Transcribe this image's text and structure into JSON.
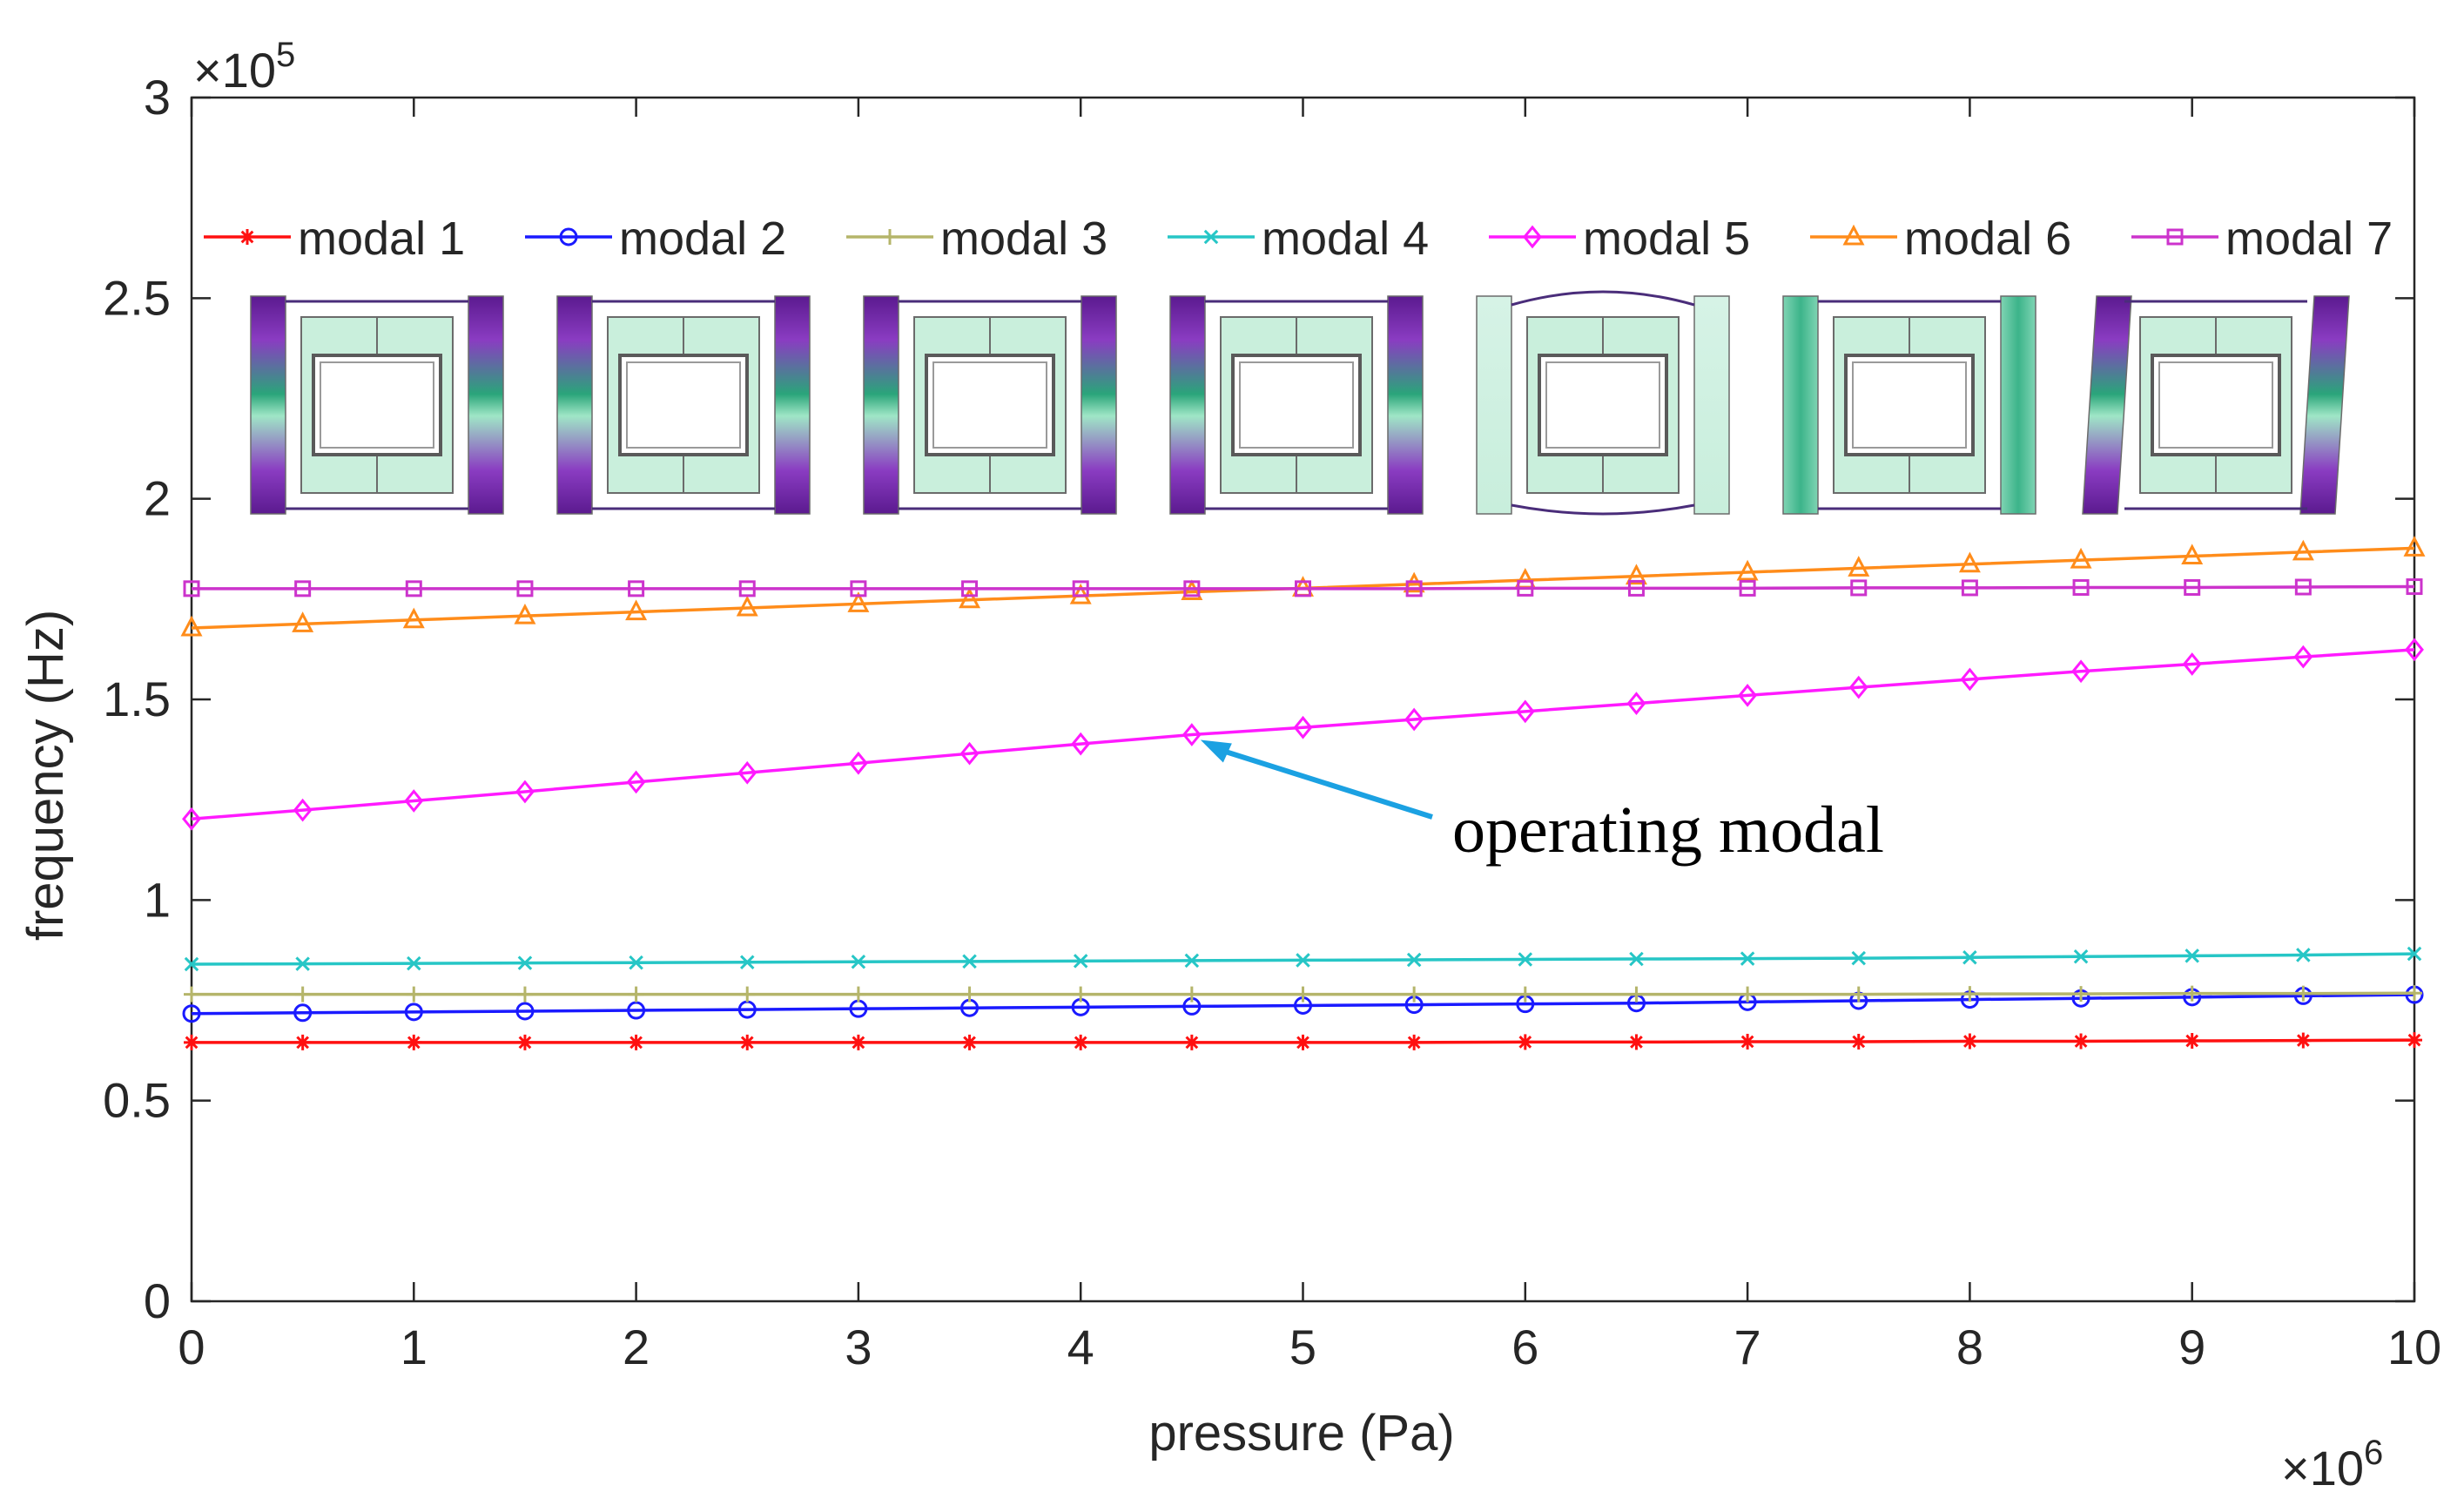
{
  "chart_data": {
    "type": "line",
    "xlabel": "pressure (Pa)",
    "ylabel": "frequency (Hz)",
    "x_exponent_label": "×10",
    "x_exponent_power": "6",
    "y_exponent_label": "×10",
    "y_exponent_power": "5",
    "xlim": [
      0,
      10
    ],
    "ylim": [
      0,
      3
    ],
    "x_scale": 1000000,
    "y_scale": 100000,
    "xticks": [
      "0",
      "1",
      "2",
      "3",
      "4",
      "5",
      "6",
      "7",
      "8",
      "9",
      "10"
    ],
    "yticks": [
      "0",
      "0.5",
      "1",
      "1.5",
      "2",
      "2.5",
      "3"
    ],
    "grid": false,
    "legend_position": "top, single row",
    "x": [
      0,
      0.5,
      1,
      1.5,
      2,
      2.5,
      3,
      3.5,
      4,
      4.5,
      5,
      5.5,
      6,
      6.5,
      7,
      7.5,
      8,
      8.5,
      9,
      9.5,
      10
    ],
    "series": [
      {
        "name": "modal 1",
        "color": "#ff1010",
        "marker": "asterisk",
        "values": [
          0.645,
          0.645,
          0.645,
          0.645,
          0.645,
          0.645,
          0.645,
          0.645,
          0.645,
          0.645,
          0.645,
          0.645,
          0.646,
          0.646,
          0.647,
          0.647,
          0.648,
          0.648,
          0.649,
          0.65,
          0.651
        ]
      },
      {
        "name": "modal 2",
        "color": "#1a1aff",
        "marker": "circle",
        "values": [
          0.717,
          0.719,
          0.721,
          0.723,
          0.725,
          0.727,
          0.729,
          0.731,
          0.733,
          0.735,
          0.737,
          0.739,
          0.741,
          0.743,
          0.746,
          0.749,
          0.752,
          0.755,
          0.758,
          0.761,
          0.764
        ]
      },
      {
        "name": "modal 3",
        "color": "#b5b56a",
        "marker": "plus",
        "values": [
          0.765,
          0.765,
          0.765,
          0.765,
          0.765,
          0.765,
          0.765,
          0.765,
          0.765,
          0.765,
          0.765,
          0.765,
          0.765,
          0.765,
          0.765,
          0.765,
          0.766,
          0.766,
          0.767,
          0.767,
          0.768
        ]
      },
      {
        "name": "modal 4",
        "color": "#26c6c6",
        "marker": "x",
        "values": [
          0.84,
          0.841,
          0.842,
          0.843,
          0.844,
          0.845,
          0.846,
          0.847,
          0.848,
          0.849,
          0.85,
          0.851,
          0.852,
          0.853,
          0.854,
          0.855,
          0.857,
          0.859,
          0.861,
          0.863,
          0.866
        ]
      },
      {
        "name": "modal 5",
        "color": "#ff1aff",
        "marker": "diamond",
        "values": [
          1.202,
          1.224,
          1.247,
          1.27,
          1.294,
          1.317,
          1.341,
          1.365,
          1.389,
          1.412,
          1.43,
          1.45,
          1.47,
          1.49,
          1.51,
          1.53,
          1.55,
          1.57,
          1.588,
          1.606,
          1.624
        ]
      },
      {
        "name": "modal 6",
        "color": "#ff8c1a",
        "marker": "triangle",
        "values": [
          1.678,
          1.688,
          1.698,
          1.708,
          1.718,
          1.728,
          1.738,
          1.748,
          1.758,
          1.768,
          1.777,
          1.787,
          1.797,
          1.807,
          1.817,
          1.827,
          1.837,
          1.847,
          1.857,
          1.867,
          1.877
        ]
      },
      {
        "name": "modal 7",
        "color": "#cc33cc",
        "marker": "square",
        "values": [
          1.776,
          1.776,
          1.776,
          1.776,
          1.776,
          1.776,
          1.776,
          1.776,
          1.776,
          1.776,
          1.776,
          1.776,
          1.777,
          1.777,
          1.777,
          1.778,
          1.778,
          1.779,
          1.779,
          1.78,
          1.781
        ]
      }
    ],
    "annotations": [
      {
        "text": "operating modal",
        "target_x": 4.5,
        "target_y": 1.412,
        "arrow_color": "#1ba1e2"
      }
    ],
    "mode_shape_insets": [
      {
        "series": "modal 1",
        "style": "purple-green side bars"
      },
      {
        "series": "modal 2",
        "style": "purple-green side bars"
      },
      {
        "series": "modal 3",
        "style": "purple-green side bars"
      },
      {
        "series": "modal 4",
        "style": "purple-green side bars"
      },
      {
        "series": "modal 5",
        "style": "pale green, bent top and bottom edges"
      },
      {
        "series": "modal 6",
        "style": "green side bars"
      },
      {
        "series": "modal 7",
        "style": "tilted purple-green side bars"
      }
    ]
  }
}
